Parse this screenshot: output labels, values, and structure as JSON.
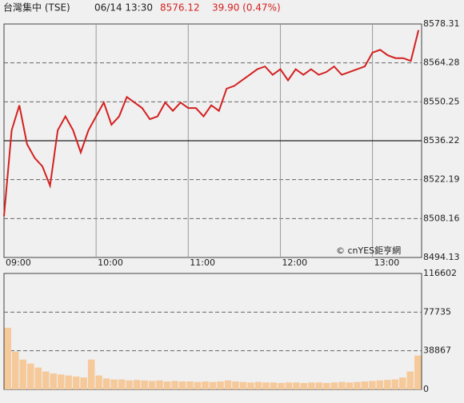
{
  "chart_data": [
    {
      "type": "line",
      "title": "台灣集中 (TSE)",
      "datetime": "06/14 13:30",
      "last": "8576.12",
      "change": "39.90 (0.47%)",
      "watermark": "© cnYES鉅亨網",
      "x": [
        0,
        5,
        10,
        15,
        20,
        25,
        30,
        35,
        40,
        45,
        50,
        55,
        60,
        65,
        70,
        75,
        80,
        85,
        90,
        95,
        100,
        105,
        110,
        115,
        120,
        125,
        130,
        135,
        140,
        145,
        150,
        155,
        160,
        165,
        170,
        175,
        180,
        185,
        190,
        195,
        200,
        205,
        210,
        215,
        220,
        225,
        230,
        235,
        240,
        245,
        250,
        255,
        260,
        265,
        270
      ],
      "xlim": [
        0,
        272
      ],
      "xticks": [
        {
          "value": 0,
          "label": "09:00"
        },
        {
          "value": 60,
          "label": "10:00"
        },
        {
          "value": 120,
          "label": "11:00"
        },
        {
          "value": 180,
          "label": "12:00"
        },
        {
          "value": 240,
          "label": "13:00"
        }
      ],
      "series": [
        {
          "color": "#d42020",
          "values": [
            8509,
            8540,
            8549,
            8535,
            8530,
            8527,
            8520,
            8540,
            8545,
            8540,
            8532,
            8540,
            8545,
            8550,
            8542,
            8545,
            8552,
            8550,
            8548,
            8544,
            8545,
            8550,
            8547,
            8550,
            8548,
            8548,
            8545,
            8549,
            8547,
            8555,
            8556,
            8558,
            8560,
            8562,
            8563,
            8560,
            8562,
            8558,
            8562,
            8560,
            8562,
            8560,
            8561,
            8563,
            8560,
            8561,
            8562,
            8563,
            8568,
            8569,
            8567,
            8566,
            8566,
            8565,
            8576.12
          ]
        }
      ],
      "ylim": [
        8494.13,
        8578.31
      ],
      "yticks": [
        8494.13,
        8508.16,
        8522.19,
        8536.22,
        8550.25,
        8564.28,
        8578.31
      ],
      "reference_line": 8536.22
    },
    {
      "type": "bar",
      "color": "#f5c99a",
      "values": [
        62000,
        38000,
        30000,
        26000,
        22000,
        18000,
        16000,
        15000,
        14000,
        13000,
        12000,
        30000,
        14000,
        11000,
        10000,
        10000,
        9000,
        9500,
        9000,
        8500,
        9000,
        8000,
        8500,
        8000,
        8000,
        7500,
        8000,
        7500,
        8000,
        9000,
        8000,
        7500,
        7000,
        7500,
        7000,
        7000,
        6500,
        7000,
        7000,
        6500,
        7000,
        7000,
        6500,
        7000,
        7500,
        7000,
        7500,
        8000,
        8500,
        9000,
        9500,
        10000,
        12000,
        18000,
        34000
      ],
      "ylim": [
        0,
        116602
      ],
      "yticks": [
        0,
        38867,
        77735,
        116602
      ]
    }
  ]
}
